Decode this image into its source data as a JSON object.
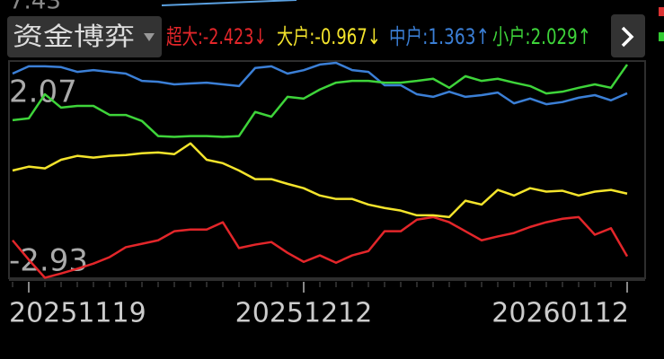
{
  "upper_panel": {
    "label": "7.43"
  },
  "chart_data": {
    "type": "line",
    "title": "资金博弈",
    "legend_separator": ":",
    "categories": [
      null,
      "20251119",
      null,
      null,
      null,
      null,
      null,
      null,
      null,
      null,
      null,
      null,
      null,
      null,
      null,
      null,
      null,
      null,
      "20251212",
      null,
      null,
      null,
      null,
      null,
      null,
      null,
      null,
      null,
      null,
      null,
      null,
      null,
      null,
      null,
      null,
      null,
      null,
      null,
      "20260112"
    ],
    "ylim": [
      -2.93,
      2.07
    ],
    "yticks": [
      -2.93,
      2.07
    ],
    "grid": false,
    "series": [
      {
        "name": "超大",
        "trend": "↓",
        "color": "#e3262a",
        "values": [
          -2.05,
          -2.5,
          -2.92,
          -2.82,
          -2.71,
          -2.59,
          -2.44,
          -2.21,
          -2.13,
          -2.05,
          -1.84,
          -1.8,
          -1.8,
          -1.63,
          -2.23,
          -2.15,
          -2.09,
          -2.34,
          -2.55,
          -2.4,
          -2.57,
          -2.4,
          -2.3,
          -1.84,
          -1.84,
          -1.57,
          -1.51,
          -1.63,
          -1.84,
          -2.05,
          -1.96,
          -1.88,
          -1.74,
          -1.63,
          -1.55,
          -1.51,
          -1.92,
          -1.77,
          -2.423
        ]
      },
      {
        "name": "大户",
        "trend": "↓",
        "color": "#f4e42c",
        "values": [
          -0.43,
          -0.34,
          -0.38,
          -0.18,
          -0.09,
          -0.13,
          -0.09,
          -0.07,
          -0.03,
          -0.01,
          -0.05,
          0.2,
          -0.18,
          -0.26,
          -0.43,
          -0.63,
          -0.63,
          -0.74,
          -0.84,
          -1.01,
          -1.09,
          -1.09,
          -1.22,
          -1.3,
          -1.36,
          -1.47,
          -1.47,
          -1.51,
          -1.13,
          -1.22,
          -0.88,
          -1.01,
          -0.84,
          -0.92,
          -0.9,
          -1.01,
          -0.92,
          -0.88,
          -0.967
        ]
      },
      {
        "name": "中户",
        "trend": "↑",
        "color": "#3b7fd6",
        "values": [
          1.82,
          1.99,
          1.99,
          1.97,
          1.86,
          1.9,
          1.86,
          1.82,
          1.65,
          1.63,
          1.57,
          1.59,
          1.61,
          1.57,
          1.53,
          1.95,
          1.99,
          1.82,
          1.9,
          2.03,
          2.07,
          1.9,
          1.86,
          1.55,
          1.55,
          1.34,
          1.28,
          1.4,
          1.28,
          1.32,
          1.38,
          1.13,
          1.24,
          1.11,
          1.16,
          1.26,
          1.32,
          1.2,
          1.363
        ]
      },
      {
        "name": "小户",
        "trend": "↑",
        "color": "#3ed43a",
        "values": [
          0.74,
          0.78,
          1.34,
          1.03,
          1.07,
          1.07,
          0.86,
          0.86,
          0.72,
          0.37,
          0.35,
          0.37,
          0.37,
          0.35,
          0.37,
          0.93,
          0.82,
          1.28,
          1.24,
          1.45,
          1.61,
          1.65,
          1.65,
          1.61,
          1.61,
          1.65,
          1.7,
          1.49,
          1.76,
          1.65,
          1.7,
          1.61,
          1.53,
          1.36,
          1.4,
          1.49,
          1.57,
          1.49,
          2.029
        ]
      }
    ]
  }
}
